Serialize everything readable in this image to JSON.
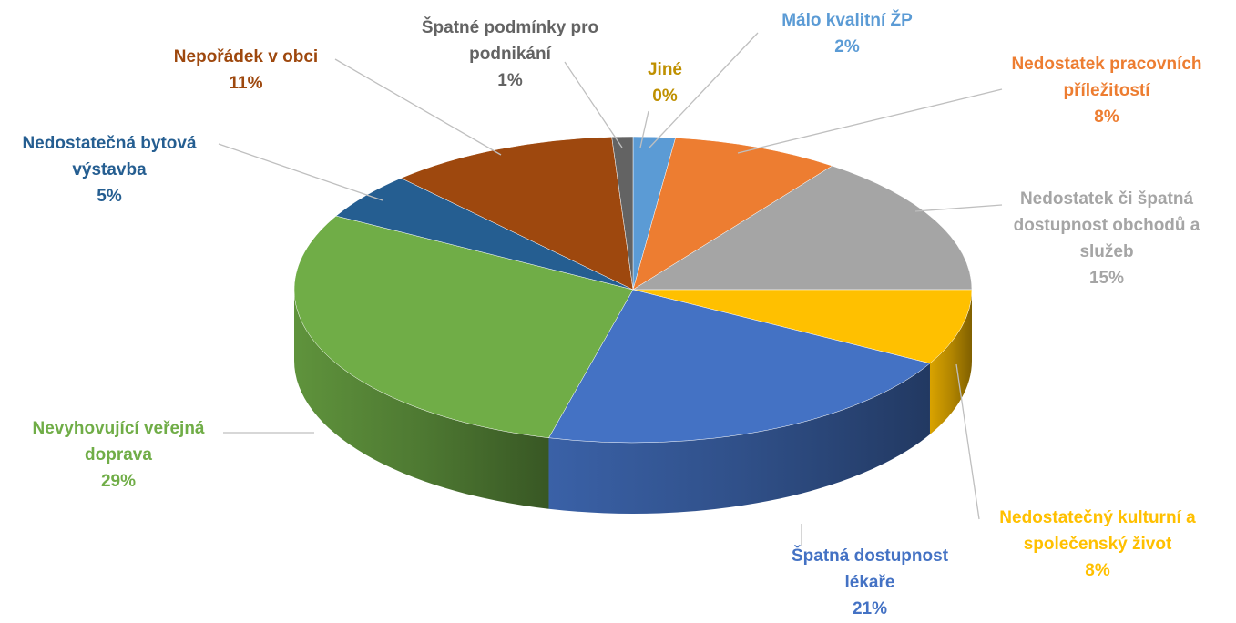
{
  "chart_data": {
    "type": "pie3d",
    "categories": [
      "Jiné",
      "Málo kvalitní ŽP",
      "Nedostatek pracovních příležitostí",
      "Nedostatek či špatná dostupnost obchodů a služeb",
      "Nedostatečný kulturní a společenský život",
      "Špatná dostupnost lékaře",
      "Nevyhovující veřejná doprava",
      "Nedostatečná bytová výstavba",
      "Nepořádek v obci",
      "Špatné podmínky pro podnikání"
    ],
    "values": [
      0,
      2,
      8,
      15,
      8,
      21,
      29,
      5,
      11,
      1
    ],
    "value_labels": [
      "0%",
      "2%",
      "8%",
      "15%",
      "8%",
      "21%",
      "29%",
      "5%",
      "11%",
      "1%"
    ],
    "colors": [
      "#bf9000",
      "#5b9bd5",
      "#ed7d31",
      "#a5a5a5",
      "#ffc000",
      "#4472c4",
      "#70ad47",
      "#255e91",
      "#9e480e",
      "#636363"
    ]
  }
}
